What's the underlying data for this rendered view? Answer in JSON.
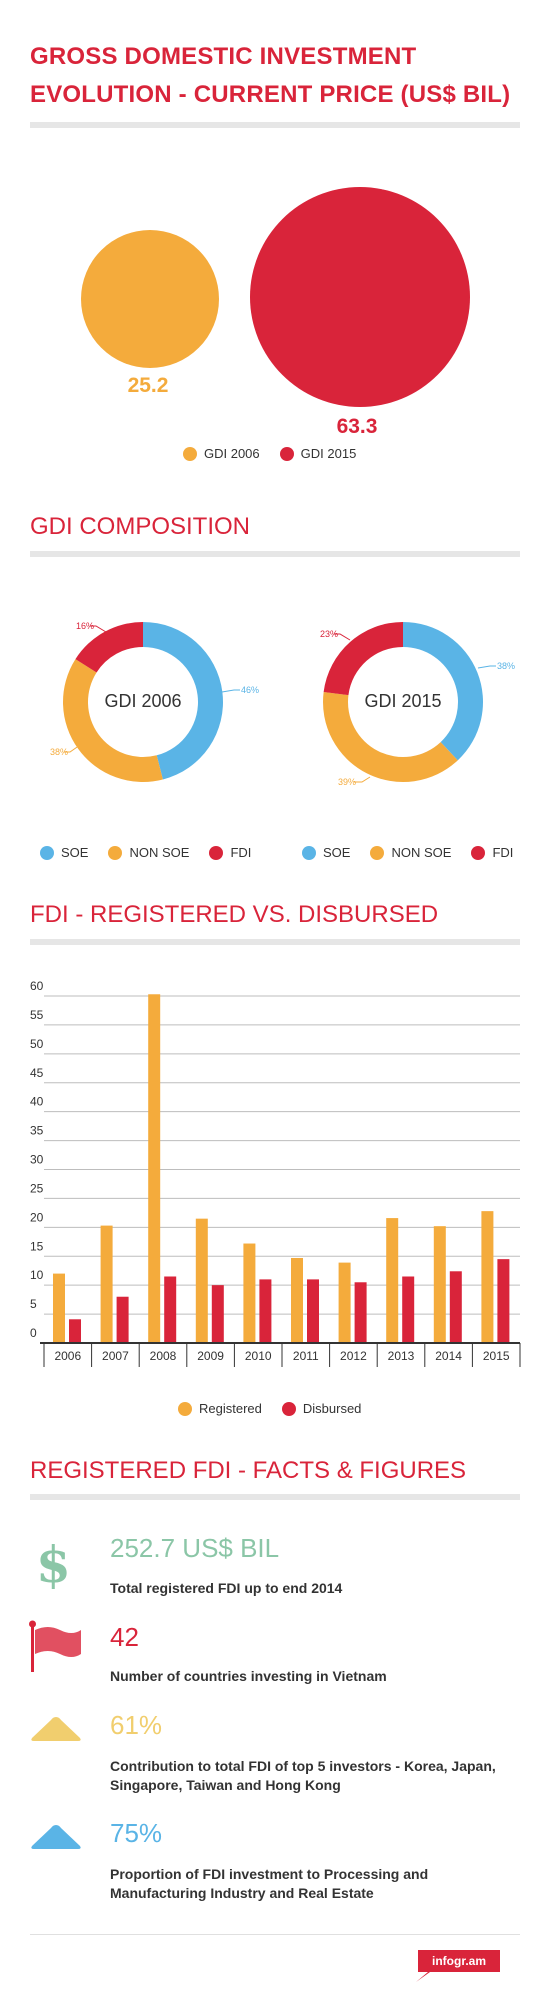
{
  "colors": {
    "accent": "#d9243a",
    "orange": "#f4ab3c",
    "blue": "#5ab4e6",
    "green": "#8bc6a7",
    "yellow": "#f1ce6e",
    "rule": "#e6e6e6"
  },
  "gdi_evolution": {
    "title_line1": "GROSS DOMESTIC INVESTMENT",
    "title_line2": "EVOLUTION - CURRENT PRICE (US$ BIL)",
    "bubble1_label": "25.2",
    "bubble2_label": "63.3",
    "legend": [
      "GDI 2006",
      "GDI 2015"
    ]
  },
  "gdi_composition": {
    "title": "GDI COMPOSITION",
    "donut1_center": "GDI 2006",
    "donut2_center": "GDI 2015",
    "donut1_labels": {
      "soe": "46%",
      "non_soe": "38%",
      "fdi": "16%"
    },
    "donut2_labels": {
      "soe": "38%",
      "non_soe": "39%",
      "fdi": "23%"
    },
    "legend": [
      "SOE",
      "NON SOE",
      "FDI"
    ]
  },
  "fdi_chart": {
    "title": "FDI - REGISTERED VS. DISBURSED",
    "legend": [
      "Registered",
      "Disbursed"
    ]
  },
  "facts": {
    "title": "REGISTERED FDI - FACTS & FIGURES",
    "items": [
      {
        "value": "252.7 US$ BIL",
        "desc": "Total registered FDI up to end 2014",
        "icon": "dollar-icon",
        "color": "#8bc6a7"
      },
      {
        "value": "42",
        "desc": "Number of countries investing in Vietnam",
        "icon": "flag-icon",
        "color": "#d9243a"
      },
      {
        "value": "61%",
        "desc": "Contribution to total FDI of top 5 investors - Korea, Japan, Singapore, Taiwan and Hong Kong",
        "icon": "triangle-icon",
        "color": "#f1ce6e"
      },
      {
        "value": "75%",
        "desc": "Proportion of FDI investment to Processing and Manufacturing Industry and Real Estate",
        "icon": "triangle-icon",
        "color": "#5ab4e6"
      }
    ]
  },
  "footer": {
    "brand": "infogr.am"
  },
  "chart_data": [
    {
      "type": "bubble",
      "title": "GROSS DOMESTIC INVESTMENT EVOLUTION - CURRENT PRICE (US$ BIL)",
      "series": [
        {
          "name": "GDI 2006",
          "value": 25.2
        },
        {
          "name": "GDI 2015",
          "value": 63.3
        }
      ]
    },
    {
      "type": "pie",
      "center_label": "GDI 2006",
      "categories": [
        "SOE",
        "NON SOE",
        "FDI"
      ],
      "values": [
        46,
        38,
        16
      ]
    },
    {
      "type": "pie",
      "center_label": "GDI 2015",
      "categories": [
        "SOE",
        "NON SOE",
        "FDI"
      ],
      "values": [
        38,
        39,
        23
      ]
    },
    {
      "type": "bar",
      "title": "FDI - REGISTERED VS. DISBURSED",
      "categories": [
        "2006",
        "2007",
        "2008",
        "2009",
        "2010",
        "2011",
        "2012",
        "2013",
        "2014",
        "2015"
      ],
      "series": [
        {
          "name": "Registered",
          "values": [
            12,
            20.3,
            60.3,
            21.5,
            17.2,
            14.7,
            13.9,
            21.6,
            20.2,
            22.8
          ]
        },
        {
          "name": "Disbursed",
          "values": [
            4.1,
            8,
            11.5,
            10,
            11,
            11,
            10.5,
            11.5,
            12.4,
            14.5
          ]
        }
      ],
      "yticks": [
        0,
        5,
        10,
        15,
        20,
        25,
        30,
        35,
        40,
        45,
        50,
        55,
        60
      ],
      "ylim": [
        0,
        61
      ],
      "grid": true,
      "legend": "bottom"
    }
  ]
}
